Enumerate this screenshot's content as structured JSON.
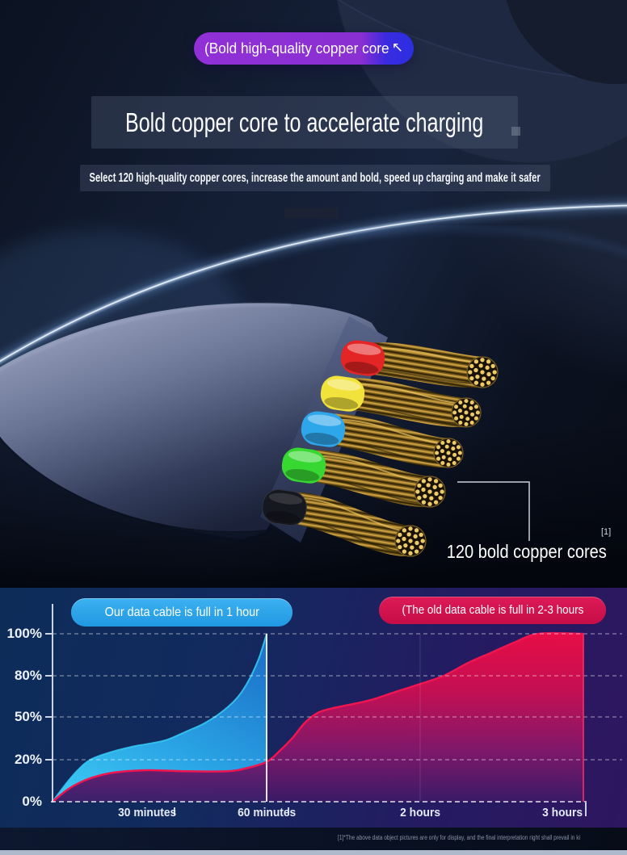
{
  "top_badge": {
    "label": "(Bold high-quality copper core",
    "arrow_glyph": "↖",
    "arrow_icon": "arrow-up-left-icon"
  },
  "hero": {
    "title": "Bold copper core to accelerate charging",
    "subtitle": "Select 120 high-quality copper cores, increase the amount and bold, speed up charging and make it safer"
  },
  "callout": {
    "footnote_mark": "[1]",
    "label": "120 bold copper cores"
  },
  "chart_data": {
    "type": "area",
    "x_unit": "minutes",
    "grid": true,
    "legend_position": "top",
    "xticks": [
      {
        "label": "30 minutes",
        "minutes": 30
      },
      {
        "label": "60 minutes",
        "minutes": 60
      },
      {
        "label": "2 hours",
        "minutes": 120
      },
      {
        "label": "3 hours",
        "minutes": 180
      }
    ],
    "yticks": [
      {
        "label": "0%",
        "value": 0
      },
      {
        "label": "20%",
        "value": 20
      },
      {
        "label": "50%",
        "value": 50
      },
      {
        "label": "80%",
        "value": 80
      },
      {
        "label": "100%",
        "value": 100
      }
    ],
    "series": [
      {
        "name": "Our data cable is full in 1 hour",
        "color": "#35c6f4",
        "points": [
          [
            0,
            0
          ],
          [
            4,
            8
          ],
          [
            8,
            15
          ],
          [
            12,
            20
          ],
          [
            18,
            25
          ],
          [
            25,
            29
          ],
          [
            30,
            31
          ],
          [
            35,
            34
          ],
          [
            40,
            40
          ],
          [
            44,
            45
          ],
          [
            48,
            52
          ],
          [
            52,
            62
          ],
          [
            55,
            74
          ],
          [
            58,
            88
          ],
          [
            60,
            100
          ]
        ]
      },
      {
        "name": "(The old data cable is full in 2-3 hours",
        "color": "#f01450",
        "points": [
          [
            0,
            0
          ],
          [
            5,
            6
          ],
          [
            10,
            10
          ],
          [
            15,
            12.5
          ],
          [
            20,
            14
          ],
          [
            30,
            15
          ],
          [
            40,
            14.5
          ],
          [
            50,
            14.5
          ],
          [
            55,
            16
          ],
          [
            60,
            19
          ],
          [
            65,
            26
          ],
          [
            70,
            35
          ],
          [
            75,
            46
          ],
          [
            80,
            53
          ],
          [
            85,
            56
          ],
          [
            90,
            58
          ],
          [
            100,
            62
          ],
          [
            110,
            68
          ],
          [
            120,
            74
          ],
          [
            130,
            80
          ],
          [
            140,
            86
          ],
          [
            150,
            91
          ],
          [
            160,
            96
          ],
          [
            170,
            100
          ],
          [
            190,
            100
          ]
        ]
      }
    ]
  },
  "footer": {
    "note": "[1]*The above data object pictures are only for display, and the final interpretation right shall prevail in ki"
  },
  "colors": {
    "accent_blue": "#2aa7e9",
    "accent_red": "#d5124e",
    "badge_purple": "#8a2fd2",
    "badge_blue_cap": "#2a2fe2",
    "copper": "#c9a043",
    "wire_colors": [
      "#e42525",
      "#f2e23c",
      "#2ea6ea",
      "#38d832",
      "#16181f"
    ]
  }
}
